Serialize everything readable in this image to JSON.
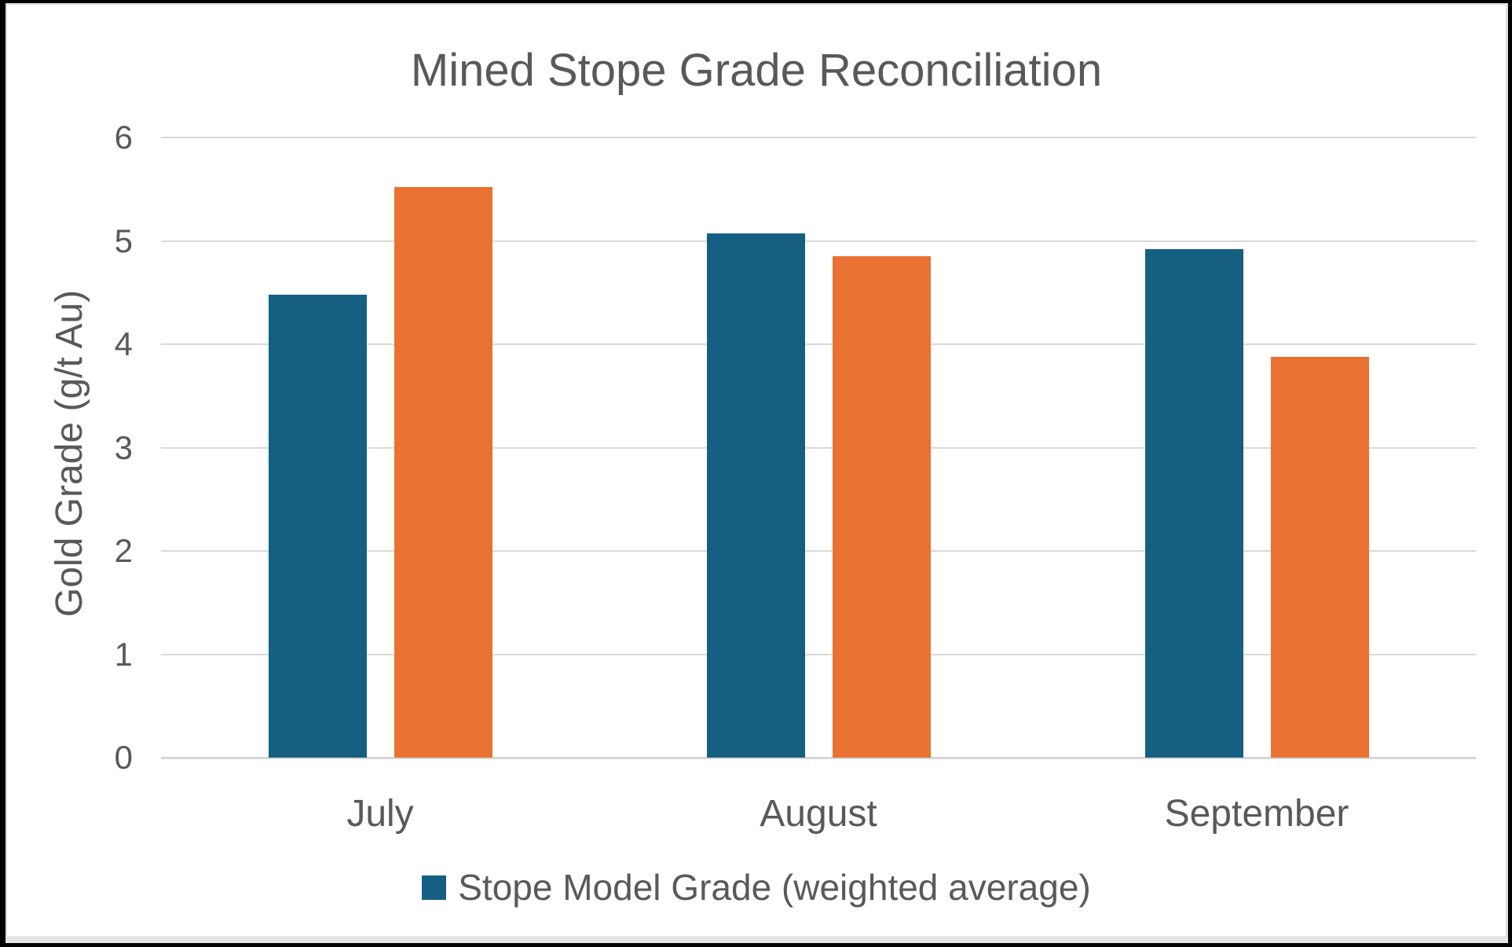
{
  "title": "Mined Stope Grade Reconciliation",
  "chart_data": {
    "type": "bar",
    "title": "Mined Stope Grade Reconciliation",
    "categories": [
      "July",
      "August",
      "September"
    ],
    "series": [
      {
        "name": "Stope Model Grade (weighted average)",
        "color": "#156082",
        "values": [
          4.48,
          5.07,
          4.92
        ]
      },
      {
        "name": "",
        "color": "#E97132",
        "values": [
          5.52,
          4.85,
          3.88
        ]
      }
    ],
    "xlabel": "",
    "ylabel": "Gold Grade (g/t Au)",
    "ylim": [
      0,
      6
    ],
    "yticks": [
      0,
      1,
      2,
      3,
      4,
      5,
      6
    ],
    "grid": true,
    "legend_position": "bottom"
  },
  "legend": {
    "items": [
      {
        "label": "Stope Model Grade (weighted average)",
        "color": "#156082"
      }
    ]
  },
  "colors": {
    "series1": "#156082",
    "series2": "#E97132",
    "text": "#595959",
    "gridline": "#d9d9d9",
    "background": "#ffffff",
    "frame": "#000000"
  }
}
